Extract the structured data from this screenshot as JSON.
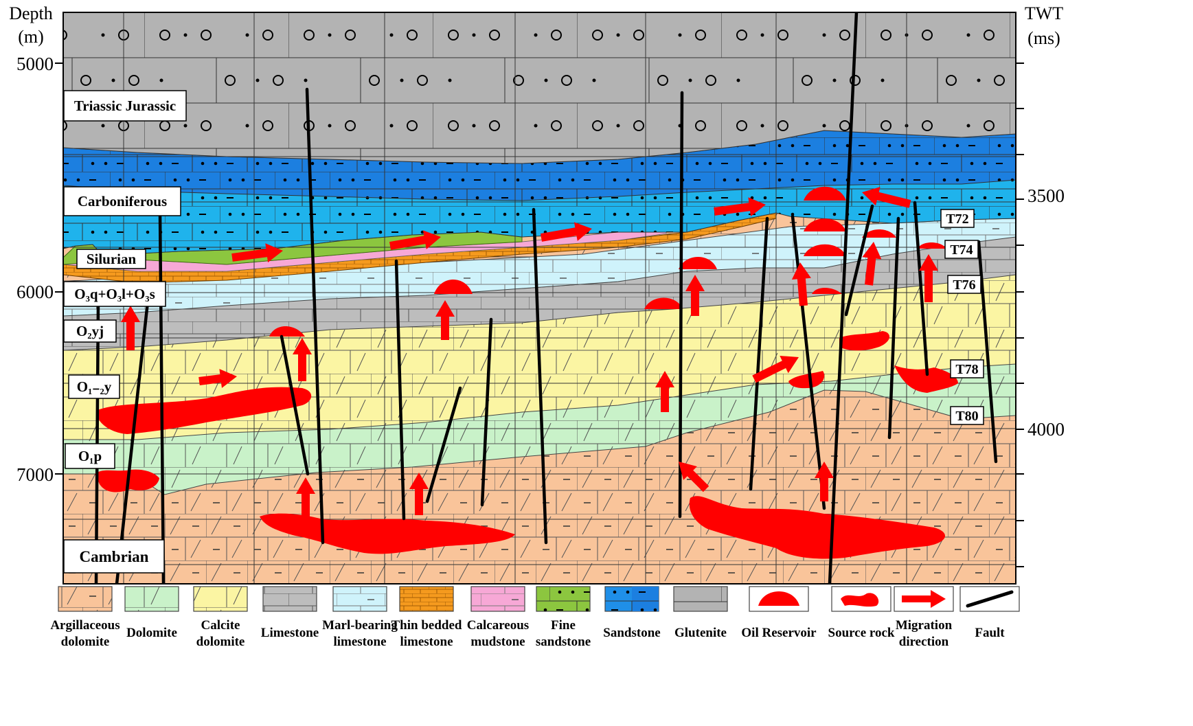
{
  "axes": {
    "left_title_line1": "Depth",
    "left_title_line2": "(m)",
    "right_title_line1": "TWT",
    "right_title_line2": "(ms)",
    "depth_ticks": [
      "5000",
      "6000",
      "7000"
    ],
    "twt_ticks": [
      "3500",
      "4000"
    ]
  },
  "strata": {
    "triassic_jurassic": "Triassic Jurassic",
    "carboniferous": "Carboniferous",
    "silurian": "Silurian",
    "o3": "O₃q+O₃l+O₃s",
    "o2yj": "O₂yj",
    "o12y": "O₁₋₂y",
    "o1p": "O₁p",
    "cambrian": "Cambrian"
  },
  "horizons": [
    "T72",
    "T74",
    "T76",
    "T78",
    "T80"
  ],
  "legend": [
    {
      "line1": "Argillaceous",
      "line2": "dolomite",
      "name": "argillaceous-dolomite",
      "color": "#f9c49a"
    },
    {
      "line1": "Dolomite",
      "line2": "",
      "name": "dolomite",
      "color": "#c9f2c9"
    },
    {
      "line1": "Calcite",
      "line2": "dolomite",
      "name": "calcite-dolomite",
      "color": "#fbf5a3"
    },
    {
      "line1": "Limestone",
      "line2": "",
      "name": "limestone",
      "color": "#bdbdbd"
    },
    {
      "line1": "Marl-bearing",
      "line2": "limestone",
      "name": "marl-bearing-limestone",
      "color": "#cff3fb"
    },
    {
      "line1": "Thin  bedded",
      "line2": "limestone",
      "name": "thin-bedded-limestone",
      "color": "#f59a1e"
    },
    {
      "line1": "Calcareous",
      "line2": "mudstone",
      "name": "calcareous-mudstone",
      "color": "#f7a8d6"
    },
    {
      "line1": "Fine",
      "line2": "sandstone",
      "name": "fine-sandstone",
      "color": "#8cc63f"
    },
    {
      "line1": "Sandstone",
      "line2": "",
      "name": "sandstone",
      "color": "#1f8fe8"
    },
    {
      "line1": "Glutenite",
      "line2": "",
      "name": "glutenite",
      "color": "#b3b3b3"
    },
    {
      "line1": "Oil Reservoir",
      "line2": "",
      "name": "oil-reservoir",
      "color": "#ff0000"
    },
    {
      "line1": "Source rock",
      "line2": "",
      "name": "source-rock",
      "color": "#ff0000"
    },
    {
      "line1": "Migration",
      "line2": "direction",
      "name": "migration-direction",
      "color": "#ff0000"
    },
    {
      "line1": "Fault",
      "line2": "",
      "name": "fault",
      "color": "#000000"
    }
  ]
}
